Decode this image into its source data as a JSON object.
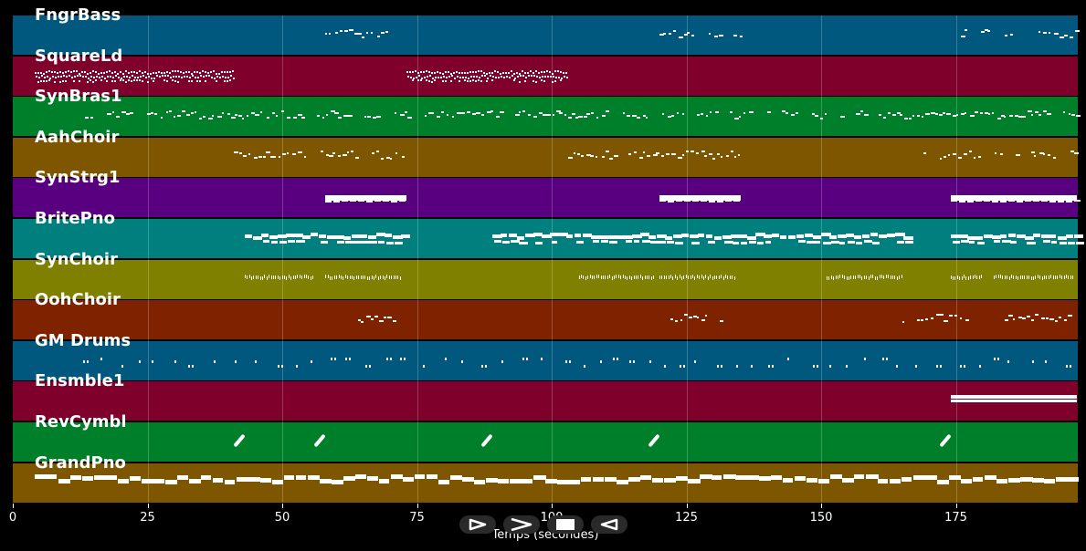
{
  "x_axis": {
    "title": "Temps (secondes)",
    "min": 0,
    "max": 197.5,
    "ticks": [
      0,
      25,
      50,
      75,
      100,
      125,
      150,
      175
    ]
  },
  "controls": [
    {
      "icon": "play-icon"
    },
    {
      "icon": "fast-forward-icon"
    },
    {
      "icon": "stop-icon"
    },
    {
      "icon": "rewind-icon"
    }
  ],
  "tracks": [
    {
      "name": "FngrBass",
      "color": "#00587f",
      "style": "dots",
      "segments": [
        [
          58,
          72
        ],
        [
          120,
          135
        ],
        [
          174,
          197.5
        ]
      ]
    },
    {
      "name": "SquareLd",
      "color": "#7f002a",
      "style": "dense-thin",
      "segments": [
        [
          4,
          41
        ],
        [
          73,
          103
        ]
      ]
    },
    {
      "name": "SynBras1",
      "color": "#007f2a",
      "style": "dots",
      "segments": [
        [
          11,
          197.5
        ]
      ]
    },
    {
      "name": "AahChoir",
      "color": "#7f5600",
      "style": "dots",
      "segments": [
        [
          41,
          73
        ],
        [
          103,
          135
        ],
        [
          169,
          197.5
        ]
      ]
    },
    {
      "name": "SynStrg1",
      "color": "#58007f",
      "style": "bar",
      "segments": [
        [
          58,
          73
        ],
        [
          120,
          135
        ],
        [
          174,
          197.5
        ]
      ]
    },
    {
      "name": "BritePno",
      "color": "#007f7f",
      "style": "chunks",
      "segments": [
        [
          43,
          73
        ],
        [
          89,
          166
        ],
        [
          174,
          197.5
        ]
      ]
    },
    {
      "name": "SynChoir",
      "color": "#7f7f00",
      "style": "fine",
      "segments": [
        [
          43,
          56
        ],
        [
          58,
          72
        ],
        [
          105,
          119
        ],
        [
          120,
          134
        ],
        [
          151,
          165
        ],
        [
          174,
          180
        ],
        [
          182,
          197
        ]
      ]
    },
    {
      "name": "OohChoir",
      "color": "#7f2200",
      "style": "dots",
      "segments": [
        [
          60,
          71
        ],
        [
          122,
          133
        ],
        [
          165,
          177
        ],
        [
          184,
          196
        ]
      ]
    },
    {
      "name": "GM Drums",
      "color": "#00587f",
      "style": "sparse",
      "segments": [
        [
          13,
          197.5
        ]
      ]
    },
    {
      "name": "Ensmble1",
      "color": "#7f002a",
      "style": "long-bar",
      "segments": [
        [
          174,
          197.5
        ]
      ]
    },
    {
      "name": "RevCymbl",
      "color": "#007f2a",
      "style": "slash",
      "notes": [
        42,
        57,
        88,
        119,
        173
      ]
    },
    {
      "name": "GrandPno",
      "color": "#7f5600",
      "style": "thick",
      "segments": [
        [
          4,
          197.5
        ]
      ]
    }
  ]
}
